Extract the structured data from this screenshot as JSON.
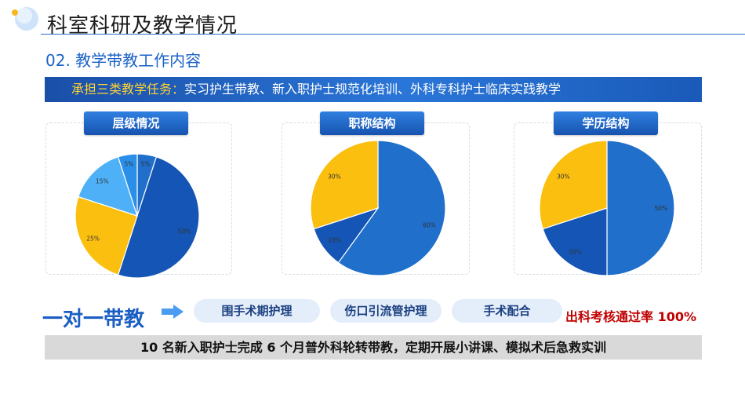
{
  "header": {
    "title": "科室科研及教学情况"
  },
  "section": {
    "subtitle": "02. 教学带教工作内容"
  },
  "banner": {
    "label": "承担三类教学任务：",
    "content": "实习护生带教、新入职护士规范化培训、外科专科护士临床实践教学"
  },
  "colors": {
    "dark_blue": "#1455b5",
    "mid_blue": "#1f6fcb",
    "light_blue": "#4eb0f7",
    "yellow": "#fbbf10"
  },
  "chart_data": [
    {
      "type": "pie",
      "title": "层级情况",
      "slices": [
        {
          "value": 5,
          "label": "5%",
          "color": "#1f6fcb"
        },
        {
          "value": 50,
          "label": "50%",
          "color": "#1455b5"
        },
        {
          "value": 25,
          "label": "25%",
          "color": "#fbbf10"
        },
        {
          "value": 15,
          "label": "15%",
          "color": "#4eb0f7"
        },
        {
          "value": 5,
          "label": "5%",
          "color": "#2a8fe8"
        }
      ]
    },
    {
      "type": "pie",
      "title": "职称结构",
      "slices": [
        {
          "value": 60,
          "label": "60%",
          "color": "#1f6fcb"
        },
        {
          "value": 10,
          "label": "10%",
          "color": "#1455b5"
        },
        {
          "value": 30,
          "label": "30%",
          "color": "#fbbf10"
        }
      ]
    },
    {
      "type": "pie",
      "title": "学历结构",
      "slices": [
        {
          "value": 50,
          "label": "50%",
          "color": "#1f6fcb"
        },
        {
          "value": 20,
          "label": "20%",
          "color": "#1455b5"
        },
        {
          "value": 30,
          "label": "30%",
          "color": "#fbbf10"
        }
      ]
    }
  ],
  "teaching": {
    "heading": "一对一带教",
    "items": [
      "围手术期护理",
      "伤口引流管护理",
      "手术配合"
    ],
    "pass_rate": "出科考核通过率 100%"
  },
  "bottom_note": "10 名新入职护士完成 6 个月普外科轮转带教，定期开展小讲课、模拟术后急救实训"
}
